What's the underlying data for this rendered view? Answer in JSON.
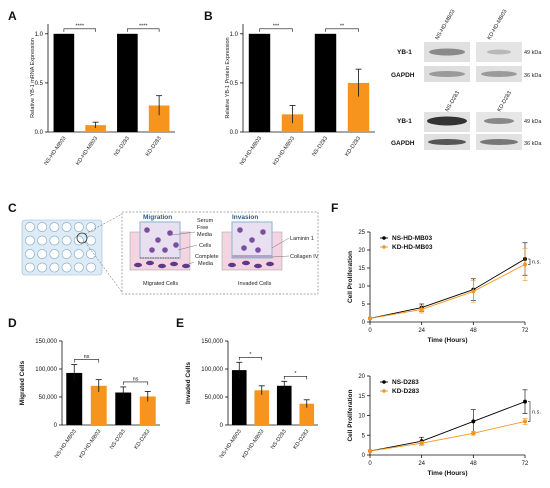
{
  "panel_letters": {
    "a": "A",
    "b": "B",
    "c": "C",
    "d": "D",
    "e": "E",
    "f": "F"
  },
  "colors": {
    "black": "#000000",
    "orange": "#f7941d",
    "grid_blue": "#dcebf5",
    "gel": "#d8d8d8"
  },
  "chart_data": [
    {
      "id": "A",
      "type": "bar",
      "ylabel": "Relative YB-1 mRNA Expression",
      "categories": [
        "NS-HD-MB03",
        "KD-HD-MB03",
        "NS-D283",
        "KD-D283"
      ],
      "values": [
        1.0,
        0.07,
        1.0,
        0.27
      ],
      "errors": [
        0,
        0.03,
        0,
        0.1
      ],
      "bar_colors": [
        "#000000",
        "#f7941d",
        "#000000",
        "#f7941d"
      ],
      "ylim": [
        0,
        1.1
      ],
      "yticks": [
        "0.0",
        "0.5",
        "1.0"
      ],
      "sig": [
        {
          "pair": [
            0,
            1
          ],
          "label": "****"
        },
        {
          "pair": [
            2,
            3
          ],
          "label": "****"
        }
      ]
    },
    {
      "id": "B",
      "type": "bar",
      "ylabel": "Relative YB-1 Protein Expression",
      "categories": [
        "NS-HD-MB03",
        "KD-HD-MB03",
        "NS-D283",
        "KD-D283"
      ],
      "values": [
        1.0,
        0.18,
        1.0,
        0.5
      ],
      "errors": [
        0,
        0.09,
        0,
        0.14
      ],
      "bar_colors": [
        "#000000",
        "#f7941d",
        "#000000",
        "#f7941d"
      ],
      "ylim": [
        0,
        1.1
      ],
      "yticks": [
        "0.0",
        "0.5",
        "1.0"
      ],
      "sig": [
        {
          "pair": [
            0,
            1
          ],
          "label": "***"
        },
        {
          "pair": [
            2,
            3
          ],
          "label": "**"
        }
      ]
    },
    {
      "id": "D",
      "type": "bar",
      "ylabel": "Migrated Cells",
      "categories": [
        "NS-HD-MB03",
        "KD-HD-MB03",
        "NS-D283",
        "KD-D283"
      ],
      "values": [
        93000,
        70000,
        58000,
        51000
      ],
      "errors": [
        15000,
        11000,
        10000,
        9000
      ],
      "bar_colors": [
        "#000000",
        "#f7941d",
        "#000000",
        "#f7941d"
      ],
      "ylim": [
        0,
        150000
      ],
      "yticks": [
        "0",
        "50,000",
        "100,000",
        "150,000"
      ],
      "sig": [
        {
          "pair": [
            0,
            1
          ],
          "label": "ns"
        },
        {
          "pair": [
            2,
            3
          ],
          "label": "ns"
        }
      ]
    },
    {
      "id": "E",
      "type": "bar",
      "ylabel": "Invaded Cells",
      "categories": [
        "NS-HD-MB03",
        "KD-HD-MB03",
        "NS-D283",
        "KD-D283"
      ],
      "values": [
        98000,
        62000,
        70000,
        38000
      ],
      "errors": [
        14000,
        8000,
        8000,
        7000
      ],
      "bar_colors": [
        "#000000",
        "#f7941d",
        "#000000",
        "#f7941d"
      ],
      "ylim": [
        0,
        150000
      ],
      "yticks": [
        "0",
        "50,000",
        "100,000",
        "150,000"
      ],
      "sig": [
        {
          "pair": [
            0,
            1
          ],
          "label": "*"
        },
        {
          "pair": [
            2,
            3
          ],
          "label": "*"
        }
      ]
    },
    {
      "id": "F1",
      "type": "line",
      "xlabel": "Time (Hours)",
      "ylabel": "Cell Proliferation",
      "x": [
        0,
        24,
        48,
        72
      ],
      "xticks": [
        "0",
        "24",
        "48",
        "72"
      ],
      "yticks": [
        "0",
        "5",
        "10",
        "15",
        "20",
        "25"
      ],
      "ylim": [
        0,
        25
      ],
      "series": [
        {
          "name": "NS-HD-MB03",
          "color": "#000000",
          "values": [
            1,
            4,
            9,
            17.5
          ],
          "errors": [
            0,
            1,
            3,
            4.5
          ]
        },
        {
          "name": "KD-HD-MB03",
          "color": "#f7941d",
          "values": [
            1,
            3.5,
            8.5,
            16
          ],
          "errors": [
            0,
            1,
            3,
            4.5
          ]
        }
      ],
      "annotation": "n.s."
    },
    {
      "id": "F2",
      "type": "line",
      "xlabel": "Time (Hours)",
      "ylabel": "Cell Proliferation",
      "x": [
        0,
        24,
        48,
        72
      ],
      "xticks": [
        "0",
        "24",
        "48",
        "72"
      ],
      "yticks": [
        "0",
        "5",
        "10",
        "15",
        "20"
      ],
      "ylim": [
        0,
        20
      ],
      "series": [
        {
          "name": "NS-D283",
          "color": "#000000",
          "values": [
            1,
            3.5,
            8.5,
            13.5
          ],
          "errors": [
            0,
            1,
            3,
            3
          ]
        },
        {
          "name": "KD-D283",
          "color": "#f7941d",
          "values": [
            1,
            3,
            5.5,
            8.5
          ],
          "errors": [
            0,
            0.5,
            0.5,
            0.8
          ]
        }
      ],
      "annotation": "n.s."
    }
  ],
  "blot": {
    "top_cols": [
      "NS-HD-MB03",
      "KD-HD-MB03"
    ],
    "bottom_cols": [
      "NS-D283",
      "KD-D283"
    ],
    "rows": [
      "YB-1",
      "GAPDH"
    ],
    "sizes": [
      "49 kDa",
      "36 kDa"
    ]
  },
  "schematic": {
    "migration_title": "Migration",
    "invasion_title": "Invasion",
    "serum_free": "Serum Free Media",
    "cells": "Cells",
    "complete": "Complete Media",
    "migrated": "Migrated Cells",
    "invaded": "Invaded Cells",
    "laminin": "Laminin 1",
    "collagen": "Collagen IV"
  }
}
